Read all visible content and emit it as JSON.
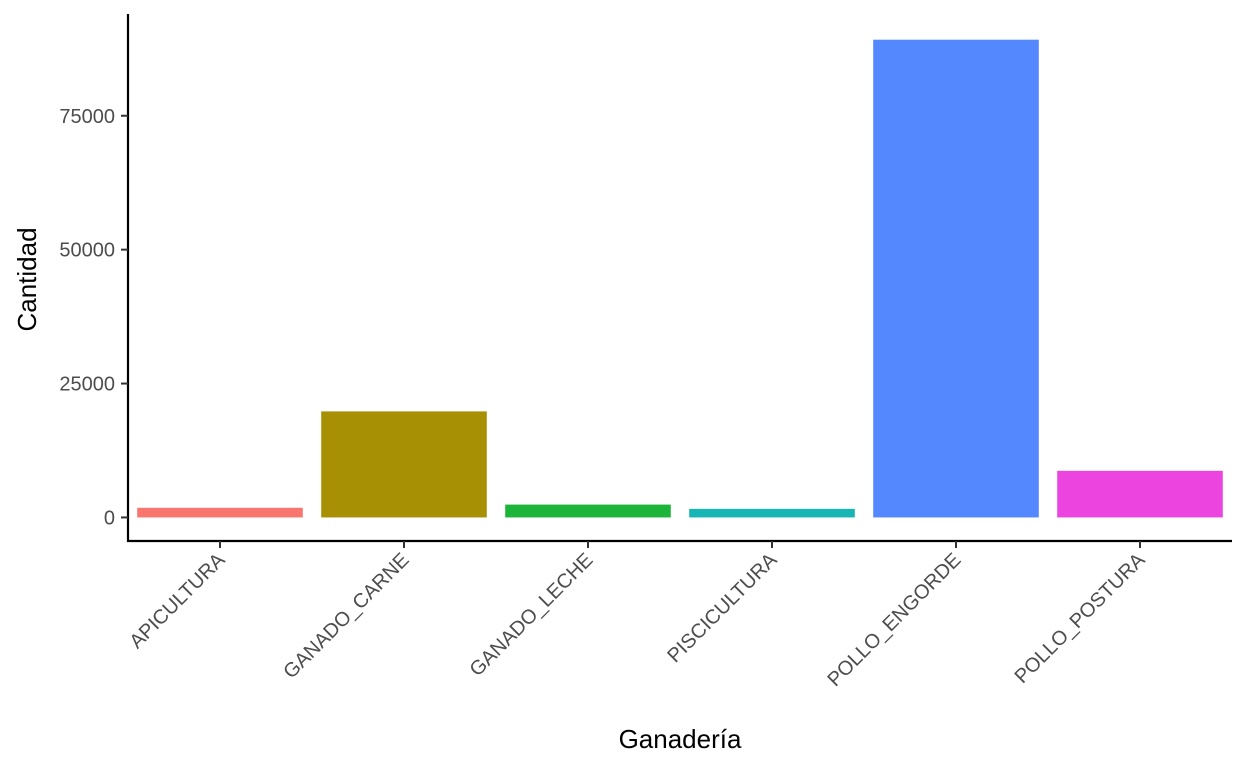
{
  "chart_data": {
    "type": "bar",
    "title": "",
    "xlabel": "Ganadería",
    "ylabel": "Cantidad",
    "categories": [
      "APICULTURA",
      "GANADO_CARNE",
      "GANADO_LECHE",
      "PISCICULTURA",
      "POLLO_ENGORDE",
      "POLLO_POSTURA"
    ],
    "values": [
      1800,
      19800,
      2400,
      1600,
      89200,
      8700
    ],
    "colors": [
      "#F8766D",
      "#A89004",
      "#1DB43A",
      "#18B5B5",
      "#5388FF",
      "#EC44DF"
    ],
    "ylim": [
      -4400,
      94000
    ],
    "yticks": [
      0,
      25000,
      50000,
      75000
    ],
    "ytick_labels": [
      "0",
      "25000",
      "50000",
      "75000"
    ],
    "grid": false,
    "legend": "none"
  }
}
